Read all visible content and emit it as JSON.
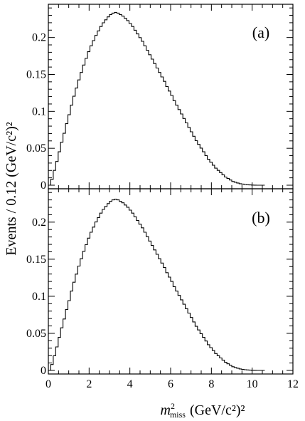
{
  "chart_data": {
    "type": "area",
    "xlabel": "m²miss (GeV/c²)²",
    "xlabel_main": "m",
    "xlabel_sup": "2",
    "xlabel_sub": "miss",
    "xlabel_unit": "(GeV/c²)²",
    "ylabel": "Events / 0.12 (GeV/c²)²",
    "xlim": [
      0,
      12
    ],
    "x_ticks": [
      0,
      2,
      4,
      6,
      8,
      10,
      12
    ],
    "x_tick_labels": [
      "0",
      "2",
      "4",
      "6",
      "8",
      "10",
      "12"
    ],
    "bin_width": 0.12,
    "panels": [
      {
        "label": "(a)",
        "ylim": [
          0,
          0.245
        ],
        "y_ticks": [
          0,
          0.05,
          0.1,
          0.15,
          0.2
        ],
        "y_tick_labels": [
          "0",
          "0.05",
          "0.1",
          "0.15",
          "0.2"
        ],
        "peak": {
          "x": 3.1,
          "y": 0.234
        }
      },
      {
        "label": "(b)",
        "ylim": [
          0,
          0.245
        ],
        "y_ticks": [
          0,
          0.05,
          0.1,
          0.15,
          0.2
        ],
        "y_tick_labels": [
          "0",
          "0.05",
          "0.1",
          "0.15",
          "0.2"
        ],
        "peak": {
          "x": 3.1,
          "y": 0.231
        }
      }
    ],
    "points": [
      [
        0.0,
        0.0
      ],
      [
        0.12,
        0.008
      ],
      [
        0.24,
        0.02
      ],
      [
        0.36,
        0.032
      ],
      [
        0.48,
        0.045
      ],
      [
        0.6,
        0.058
      ],
      [
        0.72,
        0.07
      ],
      [
        0.84,
        0.083
      ],
      [
        0.96,
        0.095
      ],
      [
        1.08,
        0.108
      ],
      [
        1.2,
        0.12
      ],
      [
        1.32,
        0.131
      ],
      [
        1.44,
        0.142
      ],
      [
        1.56,
        0.152
      ],
      [
        1.68,
        0.162
      ],
      [
        1.8,
        0.171
      ],
      [
        1.92,
        0.18
      ],
      [
        2.04,
        0.188
      ],
      [
        2.16,
        0.195
      ],
      [
        2.28,
        0.202
      ],
      [
        2.4,
        0.208
      ],
      [
        2.52,
        0.214
      ],
      [
        2.64,
        0.219
      ],
      [
        2.76,
        0.223
      ],
      [
        2.88,
        0.227
      ],
      [
        3.0,
        0.23
      ],
      [
        3.12,
        0.232
      ],
      [
        3.24,
        0.233
      ],
      [
        3.36,
        0.232
      ],
      [
        3.48,
        0.23
      ],
      [
        3.6,
        0.228
      ],
      [
        3.72,
        0.225
      ],
      [
        3.84,
        0.222
      ],
      [
        3.96,
        0.218
      ],
      [
        4.08,
        0.214
      ],
      [
        4.2,
        0.209
      ],
      [
        4.32,
        0.204
      ],
      [
        4.44,
        0.199
      ],
      [
        4.56,
        0.194
      ],
      [
        4.68,
        0.188
      ],
      [
        4.8,
        0.182
      ],
      [
        4.92,
        0.176
      ],
      [
        5.04,
        0.17
      ],
      [
        5.16,
        0.164
      ],
      [
        5.28,
        0.158
      ],
      [
        5.4,
        0.152
      ],
      [
        5.52,
        0.146
      ],
      [
        5.64,
        0.14
      ],
      [
        5.76,
        0.133
      ],
      [
        5.88,
        0.127
      ],
      [
        6.0,
        0.121
      ],
      [
        6.12,
        0.114
      ],
      [
        6.24,
        0.108
      ],
      [
        6.36,
        0.102
      ],
      [
        6.48,
        0.096
      ],
      [
        6.6,
        0.09
      ],
      [
        6.72,
        0.084
      ],
      [
        6.84,
        0.078
      ],
      [
        6.96,
        0.072
      ],
      [
        7.08,
        0.066
      ],
      [
        7.2,
        0.06
      ],
      [
        7.32,
        0.055
      ],
      [
        7.44,
        0.05
      ],
      [
        7.56,
        0.045
      ],
      [
        7.68,
        0.04
      ],
      [
        7.8,
        0.035
      ],
      [
        7.92,
        0.031
      ],
      [
        8.04,
        0.027
      ],
      [
        8.16,
        0.023
      ],
      [
        8.28,
        0.02
      ],
      [
        8.4,
        0.017
      ],
      [
        8.52,
        0.014
      ],
      [
        8.64,
        0.011
      ],
      [
        8.76,
        0.009
      ],
      [
        8.88,
        0.007
      ],
      [
        9.0,
        0.005
      ],
      [
        9.12,
        0.004
      ],
      [
        9.24,
        0.003
      ],
      [
        9.36,
        0.002
      ],
      [
        9.48,
        0.0015
      ],
      [
        9.6,
        0.001
      ],
      [
        9.72,
        0.0007
      ],
      [
        9.84,
        0.0004
      ],
      [
        9.96,
        0.0002
      ],
      [
        10.08,
        0.0001
      ],
      [
        10.2,
        0.0
      ],
      [
        10.32,
        0.0
      ],
      [
        10.5,
        0.0
      ]
    ]
  }
}
